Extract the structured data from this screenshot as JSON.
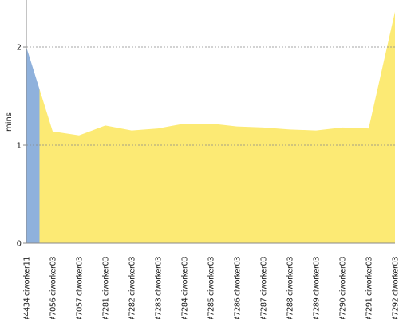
{
  "chart_data": {
    "type": "area",
    "y_label": "mins",
    "categories": [
      "#4434 ciworker11",
      "#7056 ciworker03",
      "#7057 ciworker03",
      "#7281 ciworker03",
      "#7282 ciworker03",
      "#7283 ciworker03",
      "#7284 ciworker03",
      "#7285 ciworker03",
      "#7286 ciworker03",
      "#7287 ciworker03",
      "#7288 ciworker03",
      "#7289 ciworker03",
      "#7290 ciworker03",
      "#7291 ciworker03",
      "#7292 ciworker03"
    ],
    "values": [
      2.0,
      1.14,
      1.1,
      1.2,
      1.15,
      1.17,
      1.22,
      1.22,
      1.19,
      1.18,
      1.16,
      1.15,
      1.18,
      1.17,
      2.36
    ],
    "colors": [
      "#8fb1dc",
      "#fcea74",
      "#fcea74",
      "#fcea74",
      "#fcea74",
      "#fcea74",
      "#fcea74",
      "#fcea74",
      "#fcea74",
      "#fcea74",
      "#fcea74",
      "#fcea74",
      "#fcea74",
      "#fcea74",
      "#fcea74"
    ],
    "ylim": [
      0,
      2.48
    ],
    "yticks": [
      0,
      1,
      2
    ],
    "grid": true
  }
}
